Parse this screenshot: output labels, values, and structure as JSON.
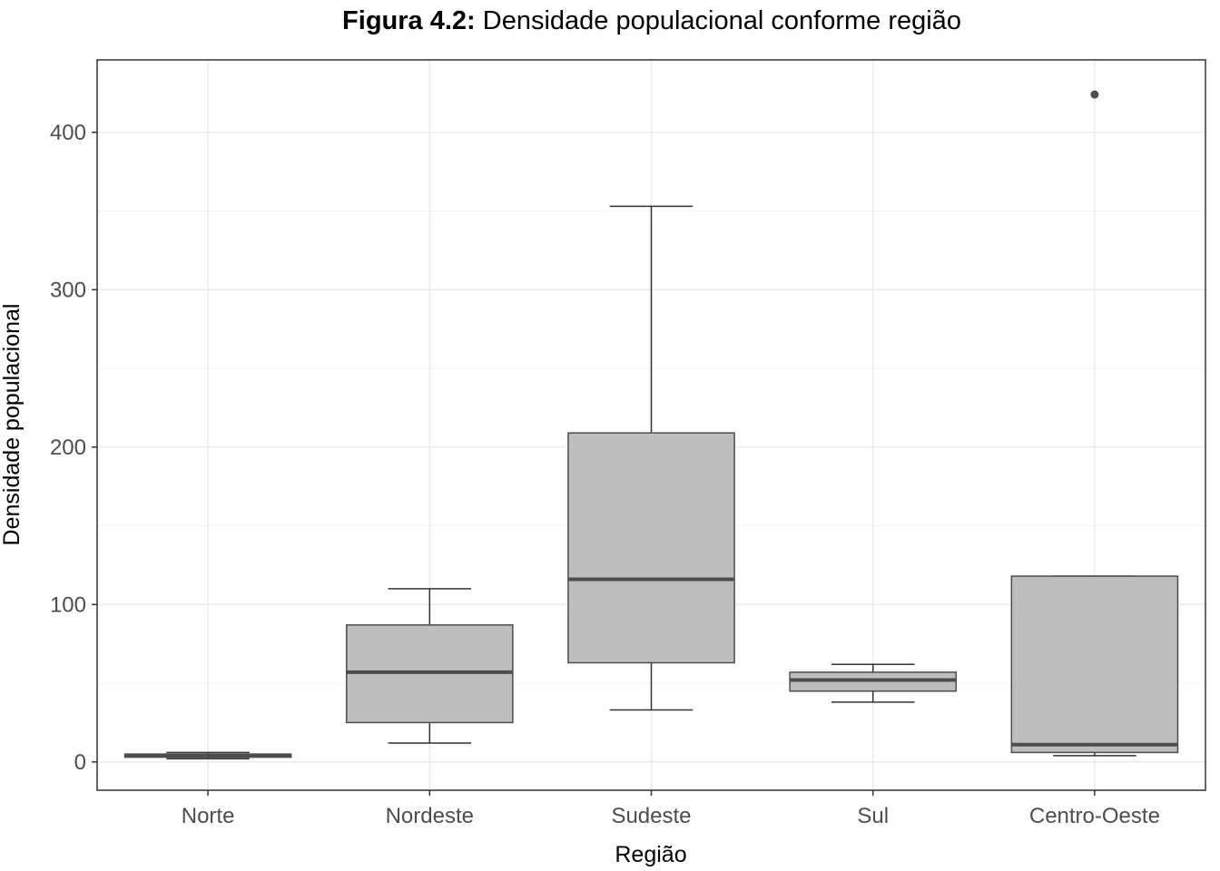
{
  "chart_data": {
    "type": "boxplot",
    "title_prefix": "Figura 4.2:",
    "title_rest": " Densidade populacional conforme região",
    "xlabel": "Região",
    "ylabel": "Densidade populacional",
    "categories": [
      "Norte",
      "Nordeste",
      "Sudeste",
      "Sul",
      "Centro-Oeste"
    ],
    "boxes": [
      {
        "category": "Norte",
        "min": 2,
        "q1": 3,
        "median": 4,
        "q3": 5,
        "max": 6,
        "outliers": []
      },
      {
        "category": "Nordeste",
        "min": 12,
        "q1": 25,
        "median": 57,
        "q3": 87,
        "max": 110,
        "outliers": []
      },
      {
        "category": "Sudeste",
        "min": 33,
        "q1": 63,
        "median": 116,
        "q3": 209,
        "max": 353,
        "outliers": []
      },
      {
        "category": "Sul",
        "min": 38,
        "q1": 45,
        "median": 52,
        "q3": 57,
        "max": 62,
        "outliers": []
      },
      {
        "category": "Centro-Oeste",
        "min": 4,
        "q1": 6,
        "median": 11,
        "q3": 118,
        "max": 118,
        "outliers": [
          424
        ]
      }
    ],
    "y_ticks": [
      0,
      100,
      200,
      300,
      400
    ],
    "ylim": [
      -18,
      446
    ],
    "grid": true,
    "colors": {
      "box_fill": "#bebebe",
      "box_stroke": "#4d4d4d",
      "median": "#4d4d4d",
      "whisker": "#333333",
      "outlier": "#4d4d4d",
      "grid_major": "#ebebeb",
      "grid_minor": "#f5f5f5",
      "panel_border": "#333333"
    }
  }
}
